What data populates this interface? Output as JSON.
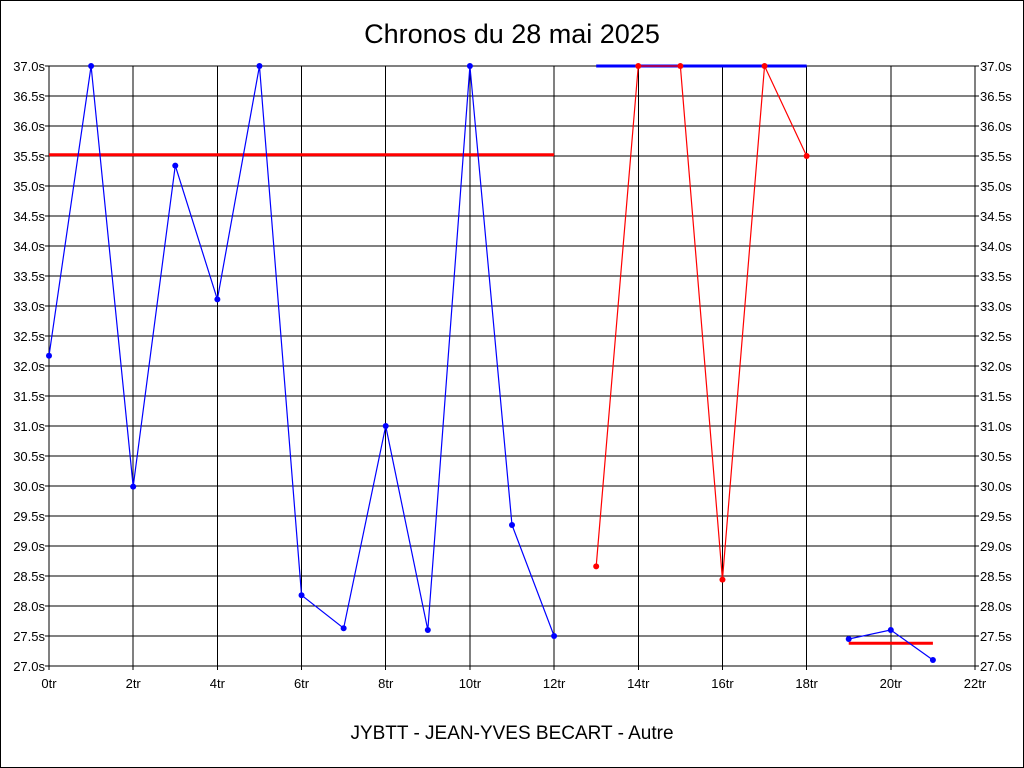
{
  "chart_data": {
    "type": "line",
    "title": "Chronos du 28 mai 2025",
    "subtitle": "JYBTT - JEAN-YVES BECART - Autre",
    "xlim": [
      0,
      22
    ],
    "ylim": [
      27.0,
      37.0
    ],
    "x_ticks": [
      {
        "value": 0,
        "label": "0tr"
      },
      {
        "value": 2,
        "label": "2tr"
      },
      {
        "value": 4,
        "label": "4tr"
      },
      {
        "value": 6,
        "label": "6tr"
      },
      {
        "value": 8,
        "label": "8tr"
      },
      {
        "value": 10,
        "label": "10tr"
      },
      {
        "value": 12,
        "label": "12tr"
      },
      {
        "value": 14,
        "label": "14tr"
      },
      {
        "value": 16,
        "label": "16tr"
      },
      {
        "value": 18,
        "label": "18tr"
      },
      {
        "value": 20,
        "label": "20tr"
      },
      {
        "value": 22,
        "label": "22tr"
      }
    ],
    "y_ticks": [
      {
        "value": 37.0,
        "label": "37.0s"
      },
      {
        "value": 36.5,
        "label": "36.5s"
      },
      {
        "value": 36.0,
        "label": "36.0s"
      },
      {
        "value": 35.5,
        "label": "35.5s"
      },
      {
        "value": 35.0,
        "label": "35.0s"
      },
      {
        "value": 34.5,
        "label": "34.5s"
      },
      {
        "value": 34.0,
        "label": "34.0s"
      },
      {
        "value": 33.5,
        "label": "33.5s"
      },
      {
        "value": 33.0,
        "label": "33.0s"
      },
      {
        "value": 32.5,
        "label": "32.5s"
      },
      {
        "value": 32.0,
        "label": "32.0s"
      },
      {
        "value": 31.5,
        "label": "31.5s"
      },
      {
        "value": 31.0,
        "label": "31.0s"
      },
      {
        "value": 30.5,
        "label": "30.5s"
      },
      {
        "value": 30.0,
        "label": "30.0s"
      },
      {
        "value": 29.5,
        "label": "29.5s"
      },
      {
        "value": 29.0,
        "label": "29.0s"
      },
      {
        "value": 28.5,
        "label": "28.5s"
      },
      {
        "value": 28.0,
        "label": "28.0s"
      },
      {
        "value": 27.5,
        "label": "27.5s"
      },
      {
        "value": 27.0,
        "label": "27.0s"
      }
    ],
    "grid": true,
    "series": [
      {
        "color": "#0000ff",
        "x": [
          0,
          1,
          2,
          3,
          4,
          5,
          6,
          7,
          8,
          9,
          10,
          11,
          12
        ],
        "y": [
          32.17,
          37.0,
          29.99,
          35.34,
          33.11,
          37.0,
          28.18,
          27.63,
          31.0,
          27.6,
          37.0,
          29.35,
          27.5
        ]
      },
      {
        "color": "#ff0000",
        "x": [
          13,
          14,
          15,
          16,
          17,
          18
        ],
        "y": [
          28.66,
          37.0,
          37.0,
          28.44,
          37.0,
          35.5
        ]
      },
      {
        "color": "#0000ff",
        "x": [
          19,
          20,
          21
        ],
        "y": [
          27.45,
          27.6,
          27.1
        ]
      }
    ],
    "reference_lines": [
      {
        "color": "#ff0000",
        "x_start": 0,
        "x_end": 12,
        "y": 35.52
      },
      {
        "color": "#0000ff",
        "x_start": 13,
        "x_end": 18,
        "y": 37.0
      },
      {
        "color": "#ff0000",
        "x_start": 19,
        "x_end": 21,
        "y": 27.38
      }
    ]
  }
}
